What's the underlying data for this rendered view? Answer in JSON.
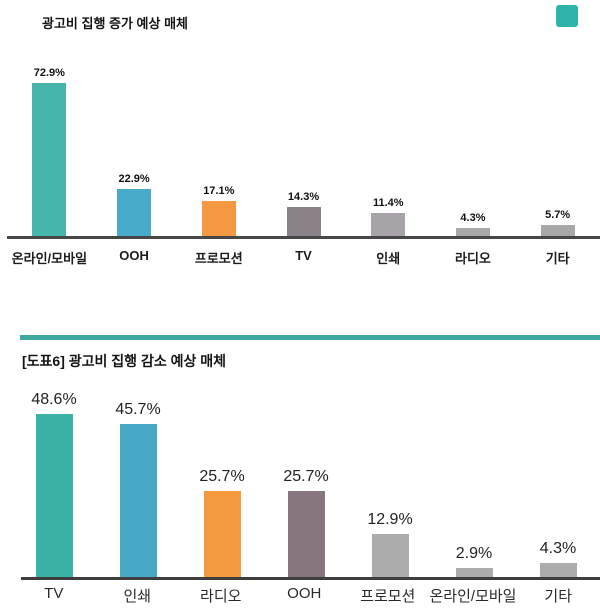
{
  "decorations": {
    "corner_mark_color": "#2fb3ab",
    "divider_color": "#3ea89f"
  },
  "chart_data": [
    {
      "type": "bar",
      "title": "광고비 집행 증가 예상 매체",
      "categories": [
        "온라인/모바일",
        "OOH",
        "프로모션",
        "TV",
        "인쇄",
        "라디오",
        "기타"
      ],
      "values": [
        72.9,
        22.9,
        17.1,
        14.3,
        11.4,
        4.3,
        5.7
      ],
      "value_labels": [
        "72.9%",
        "22.9%",
        "17.1%",
        "14.3%",
        "11.4%",
        "4.3%",
        "5.7%"
      ],
      "bar_colors": [
        "#46b5ab",
        "#48abc9",
        "#f49941",
        "#8a8088",
        "#a8a3a8",
        "#a8a8a8",
        "#a8a8a8"
      ],
      "xlabel": "",
      "ylabel": "",
      "ylim": [
        0,
        80
      ],
      "grid": false,
      "legend": false,
      "value_label_position": "above-bar"
    },
    {
      "type": "bar",
      "title": "[도표6] 광고비 집행 감소 예상 매체",
      "categories": [
        "TV",
        "인쇄",
        "라디오",
        "OOH",
        "프로모션",
        "온라인/모바일",
        "기타"
      ],
      "values": [
        48.6,
        45.7,
        25.7,
        25.7,
        12.9,
        2.9,
        4.3
      ],
      "value_labels": [
        "48.6%",
        "45.7%",
        "25.7%",
        "25.7%",
        "12.9%",
        "2.9%",
        "4.3%"
      ],
      "bar_colors": [
        "#3cb1a6",
        "#47a9c6",
        "#f49a3e",
        "#877580",
        "#acacac",
        "#acacac",
        "#acacac"
      ],
      "xlabel": "",
      "ylabel": "",
      "ylim": [
        0,
        55
      ],
      "grid": false,
      "legend": false,
      "value_label_position": "above-bar"
    }
  ]
}
